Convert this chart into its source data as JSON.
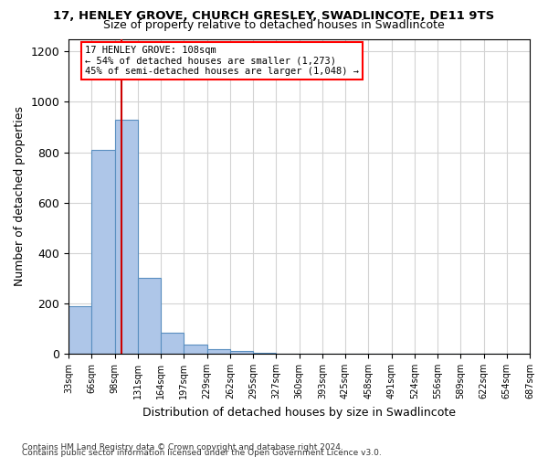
{
  "title": "17, HENLEY GROVE, CHURCH GRESLEY, SWADLINCOTE, DE11 9TS",
  "subtitle": "Size of property relative to detached houses in Swadlincote",
  "xlabel": "Distribution of detached houses by size in Swadlincote",
  "ylabel": "Number of detached properties",
  "bin_edges": [
    33,
    66,
    99,
    132,
    165,
    198,
    231,
    264,
    297,
    330,
    363,
    396,
    429,
    462,
    495,
    528,
    561,
    594,
    627,
    660,
    693
  ],
  "bar_heights": [
    190,
    810,
    930,
    300,
    85,
    35,
    20,
    10,
    5,
    2,
    2,
    1,
    1,
    1,
    1,
    0,
    0,
    0,
    0,
    0
  ],
  "bar_color": "#aec6e8",
  "bar_edgecolor": "#5a8fc0",
  "property_size": 108,
  "vline_color": "#cc0000",
  "annotation_line1": "17 HENLEY GROVE: 108sqm",
  "annotation_line2": "← 54% of detached houses are smaller (1,273)",
  "annotation_line3": "45% of semi-detached houses are larger (1,048) →",
  "ylim": [
    0,
    1250
  ],
  "yticks": [
    0,
    200,
    400,
    600,
    800,
    1000,
    1200
  ],
  "footer1": "Contains HM Land Registry data © Crown copyright and database right 2024.",
  "footer2": "Contains public sector information licensed under the Open Government Licence v3.0.",
  "tick_labels": [
    "33sqm",
    "66sqm",
    "98sqm",
    "131sqm",
    "164sqm",
    "197sqm",
    "229sqm",
    "262sqm",
    "295sqm",
    "327sqm",
    "360sqm",
    "393sqm",
    "425sqm",
    "458sqm",
    "491sqm",
    "524sqm",
    "556sqm",
    "589sqm",
    "622sqm",
    "654sqm",
    "687sqm"
  ]
}
